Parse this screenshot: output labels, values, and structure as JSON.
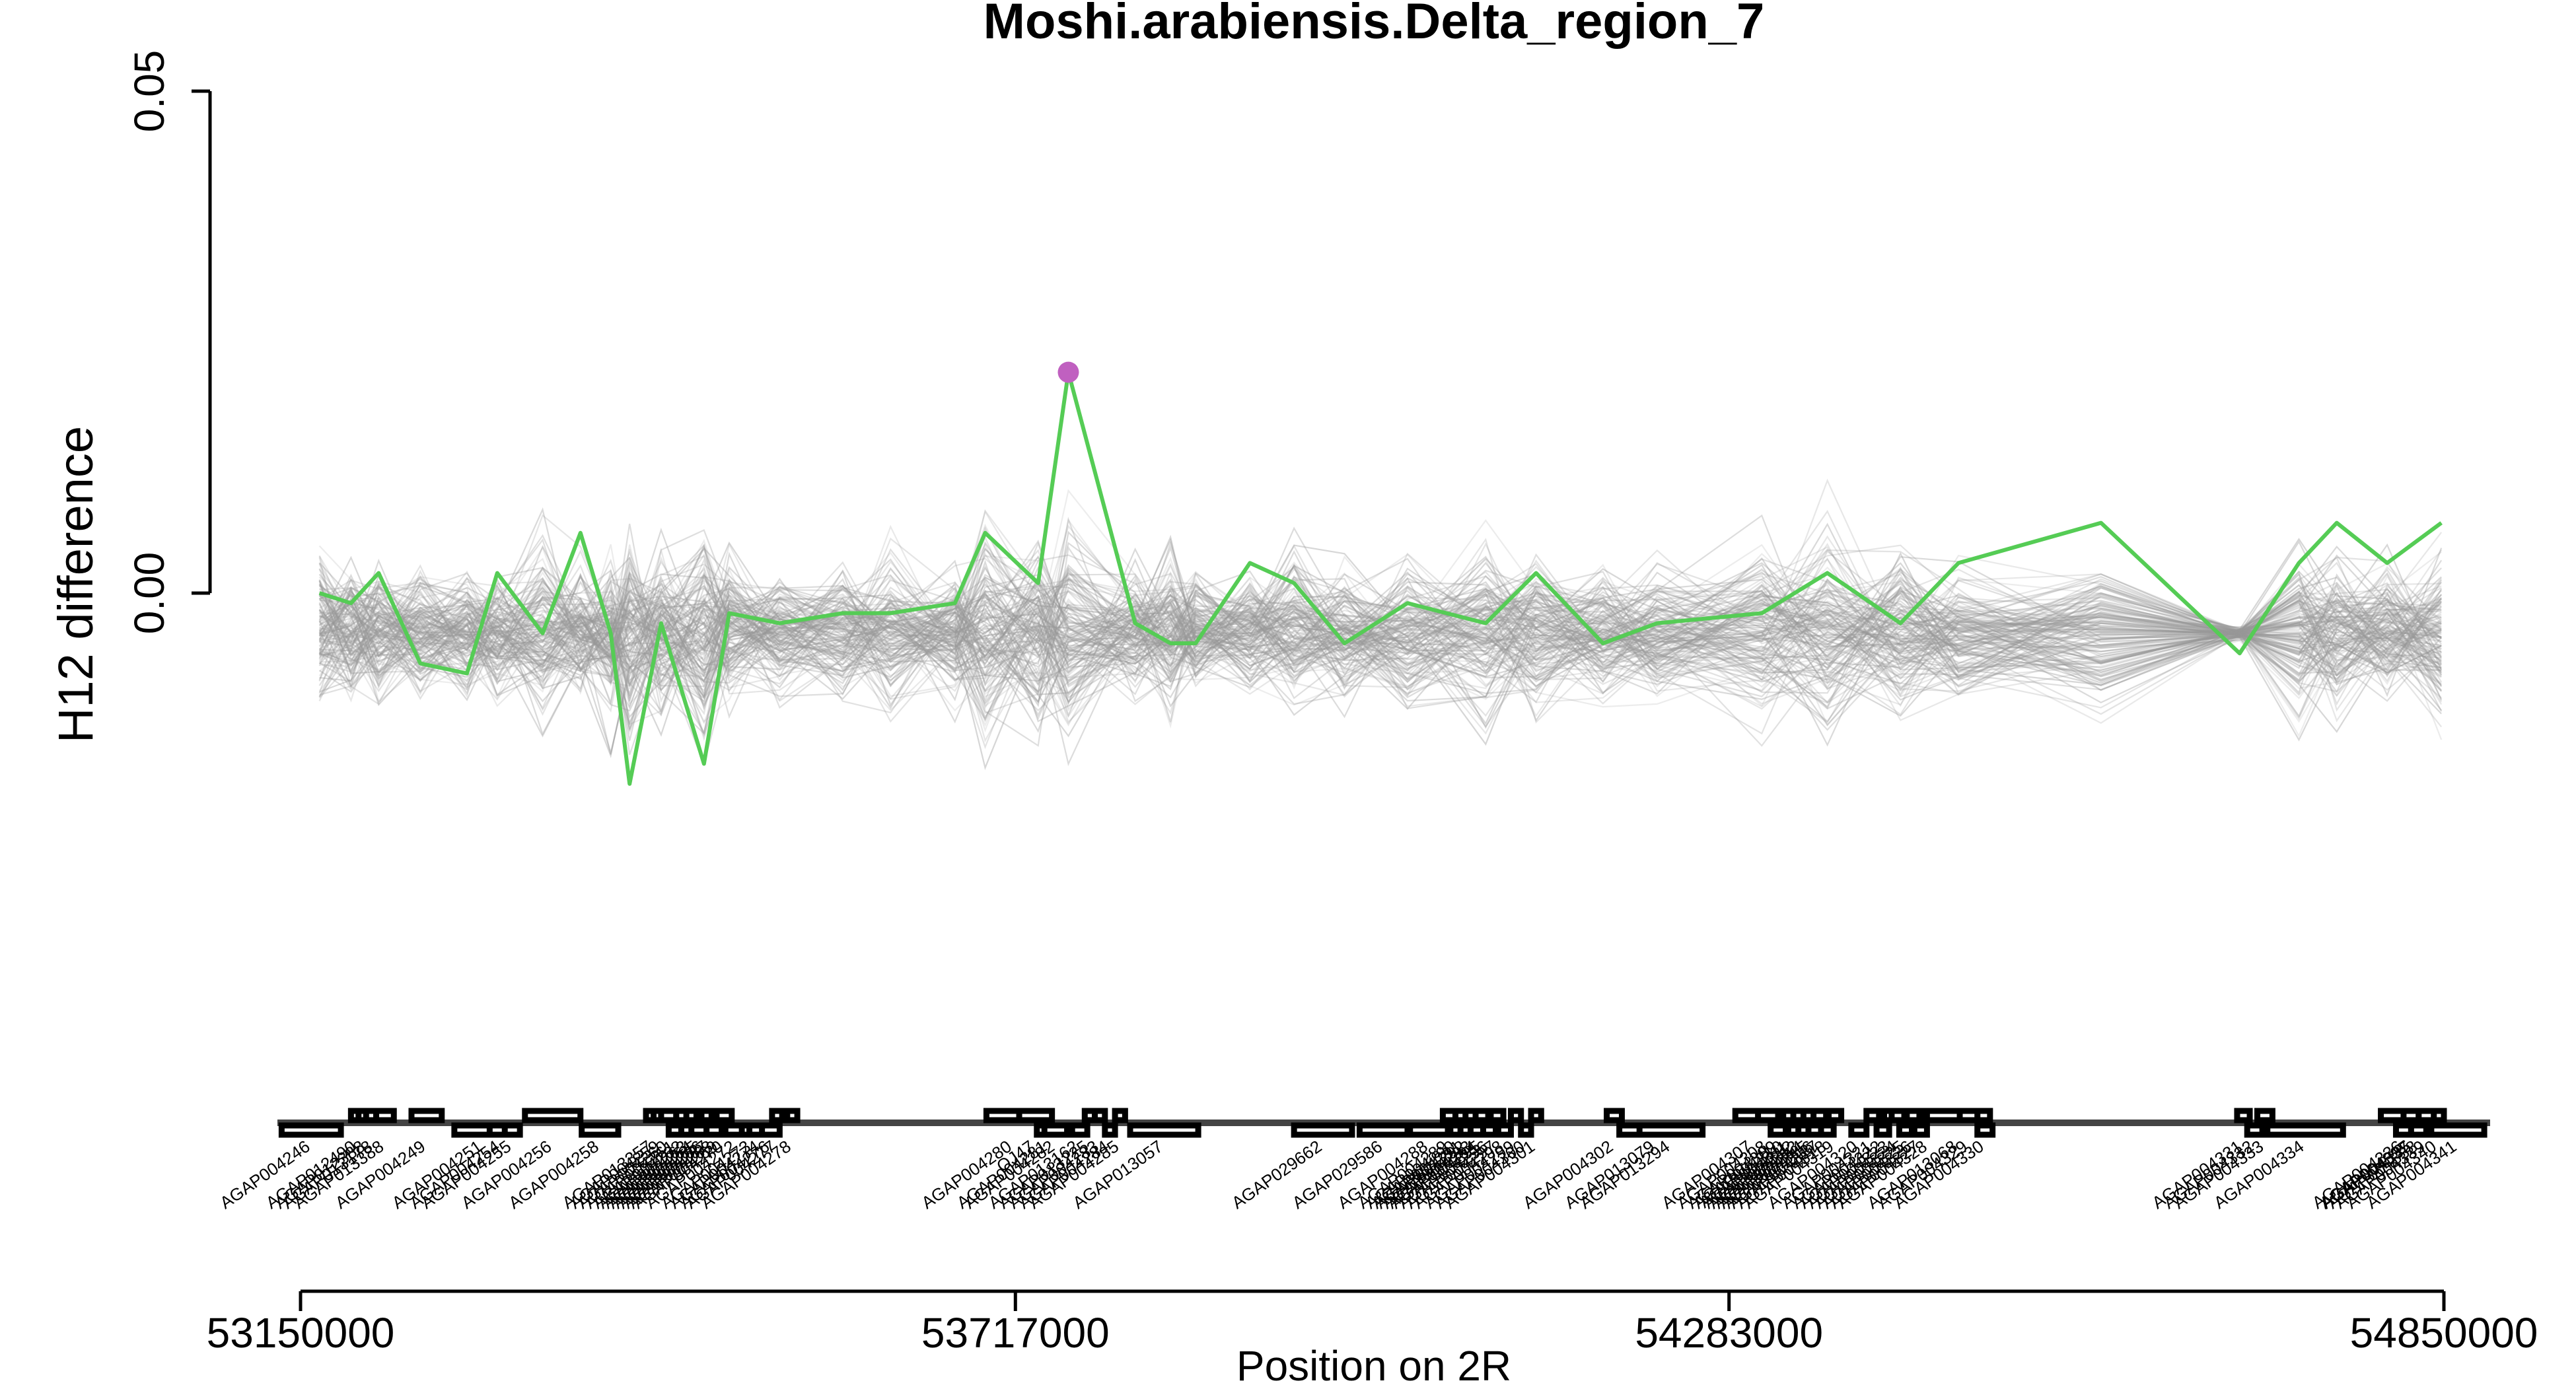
{
  "chart_data": {
    "type": "line",
    "title": "Moshi.arabiensis.Delta_region_7",
    "xlabel": "Position on 2R",
    "ylabel": "H12 difference",
    "xlim": [
      53150000,
      54850000
    ],
    "ylim": [
      -0.036,
      0.05
    ],
    "x_ticks": [
      53150000,
      53717000,
      54283000,
      54850000
    ],
    "x_tick_labels": [
      "53150000",
      "53717000",
      "54283000",
      "54850000"
    ],
    "y_ticks": [
      0.0,
      0.05
    ],
    "y_tick_labels": [
      "0.00",
      "0.05"
    ],
    "grid": false,
    "colors": {
      "main_line": "#55cc55",
      "peak_point": "#c060c0",
      "permutation_lines": "#999999",
      "genes": "#000000"
    },
    "series": [
      {
        "x": [
          53165000,
          53190000,
          53212000,
          53245000,
          53282000,
          53306000,
          53342000,
          53372000,
          53396000,
          53411000,
          53436000,
          53470000,
          53490000,
          53530000,
          53580000,
          53618000,
          53669000,
          53693000,
          53735000,
          53759000,
          53812000,
          53840000,
          53860000,
          53903000,
          53938000,
          53978000,
          54028000,
          54090000,
          54130000,
          54183000,
          54226000,
          54309000,
          54361000,
          54419000,
          54465000,
          54578000,
          54688000,
          54735000,
          54765000,
          54805000,
          54848000
        ],
        "y": [
          0.0,
          -0.001,
          0.002,
          -0.007,
          -0.008,
          0.002,
          -0.004,
          0.006,
          -0.004,
          -0.019,
          -0.003,
          -0.017,
          -0.002,
          -0.003,
          -0.002,
          -0.002,
          -0.001,
          0.006,
          0.001,
          0.022,
          -0.003,
          -0.005,
          -0.005,
          0.003,
          0.001,
          -0.005,
          -0.001,
          -0.003,
          0.002,
          -0.005,
          -0.003,
          -0.002,
          0.002,
          -0.003,
          0.003,
          0.007,
          -0.006,
          0.003,
          0.007,
          0.003,
          0.007
        ]
      }
    ],
    "highlight_point": {
      "x": 53759000,
      "y": 0.022
    },
    "genes": [
      {
        "name": "AGAP004246",
        "start": 53135000,
        "end": 53182000,
        "strand": "-"
      },
      {
        "name": "AGAP012490",
        "start": 53190000,
        "end": 53200000,
        "strand": "+"
      },
      {
        "name": "AGAP012388",
        "start": 53196000,
        "end": 53208000,
        "strand": "+"
      },
      {
        "name": "AGAP013178",
        "start": 53202000,
        "end": 53214000,
        "strand": "+"
      },
      {
        "name": "AGAP013388",
        "start": 53210000,
        "end": 53224000,
        "strand": "+"
      },
      {
        "name": "AGAP004249",
        "start": 53238000,
        "end": 53262000,
        "strand": "+"
      },
      {
        "name": "AGAP004251",
        "start": 53272000,
        "end": 53318000,
        "strand": "-"
      },
      {
        "name": "AGAP004254",
        "start": 53300000,
        "end": 53318000,
        "strand": "-"
      },
      {
        "name": "AGAP004255",
        "start": 53312000,
        "end": 53324000,
        "strand": "-"
      },
      {
        "name": "AGAP004256",
        "start": 53328000,
        "end": 53372000,
        "strand": "+"
      },
      {
        "name": "AGAP004258",
        "start": 53373000,
        "end": 53402000,
        "strand": "-"
      },
      {
        "name": "AGAP013357",
        "start": 53424000,
        "end": 53436000,
        "strand": "+"
      },
      {
        "name": "AGAP004259",
        "start": 53430000,
        "end": 53442000,
        "strand": "+"
      },
      {
        "name": "AGAP004260",
        "start": 53436000,
        "end": 53448000,
        "strand": "+"
      },
      {
        "name": "AGAP004261",
        "start": 53442000,
        "end": 53454000,
        "strand": "-"
      },
      {
        "name": "AGAP004262",
        "start": 53448000,
        "end": 53460000,
        "strand": "+"
      },
      {
        "name": "AGAP004263",
        "start": 53452000,
        "end": 53464000,
        "strand": "-"
      },
      {
        "name": "AGAP004264",
        "start": 53456000,
        "end": 53468000,
        "strand": "+"
      },
      {
        "name": "AGAP004265",
        "start": 53460000,
        "end": 53472000,
        "strand": "-"
      },
      {
        "name": "AGAP004266",
        "start": 53464000,
        "end": 53476000,
        "strand": "+"
      },
      {
        "name": "AGAP004267",
        "start": 53468000,
        "end": 53480000,
        "strand": "+"
      },
      {
        "name": "AGAP004268",
        "start": 53472000,
        "end": 53484000,
        "strand": "-"
      },
      {
        "name": "AGAP004269",
        "start": 53476000,
        "end": 53488000,
        "strand": "+"
      },
      {
        "name": "AGAP004270",
        "start": 53480000,
        "end": 53492000,
        "strand": "+"
      },
      {
        "name": "AGAP004272",
        "start": 53487000,
        "end": 53505000,
        "strand": "-"
      },
      {
        "name": "AGAP004273",
        "start": 53500000,
        "end": 53516000,
        "strand": "-"
      },
      {
        "name": "AGAP004274",
        "start": 53506000,
        "end": 53524000,
        "strand": "-"
      },
      {
        "name": "AGAP004276",
        "start": 53516000,
        "end": 53530000,
        "strand": "-"
      },
      {
        "name": "AGAP004277",
        "start": 53524000,
        "end": 53532000,
        "strand": "+"
      },
      {
        "name": "AGAP004278",
        "start": 53536000,
        "end": 53544000,
        "strand": "+"
      },
      {
        "name": "AGAP004280",
        "start": 53694000,
        "end": 53736000,
        "strand": "+"
      },
      {
        "name": "OJ47",
        "start": 53720000,
        "end": 53746000,
        "strand": "+"
      },
      {
        "name": "AGAP004281",
        "start": 53734000,
        "end": 53752000,
        "strand": "-"
      },
      {
        "name": "AGAP004282",
        "start": 53740000,
        "end": 53758000,
        "strand": "-"
      },
      {
        "name": "AGAP013162",
        "start": 53762000,
        "end": 53774000,
        "strand": "-"
      },
      {
        "name": "AGAP013225",
        "start": 53772000,
        "end": 53780000,
        "strand": "+"
      },
      {
        "name": "AGAP004283",
        "start": 53780000,
        "end": 53788000,
        "strand": "+"
      },
      {
        "name": "AGAP004284",
        "start": 53788000,
        "end": 53796000,
        "strand": "-"
      },
      {
        "name": "AGAP004285",
        "start": 53796000,
        "end": 53804000,
        "strand": "+"
      },
      {
        "name": "AGAP013057",
        "start": 53808000,
        "end": 53862000,
        "strand": "-"
      },
      {
        "name": "AGAP029662",
        "start": 53938000,
        "end": 53984000,
        "strand": "-"
      },
      {
        "name": "AGAP029586",
        "start": 53990000,
        "end": 54028000,
        "strand": "-"
      },
      {
        "name": "AGAP004288",
        "start": 54030000,
        "end": 54060000,
        "strand": "-"
      },
      {
        "name": "AGAP004289",
        "start": 54056000,
        "end": 54066000,
        "strand": "+"
      },
      {
        "name": "AGAP004290",
        "start": 54062000,
        "end": 54072000,
        "strand": "-"
      },
      {
        "name": "AGAP004291",
        "start": 54066000,
        "end": 54078000,
        "strand": "+"
      },
      {
        "name": "AGAP004292",
        "start": 54070000,
        "end": 54080000,
        "strand": "-"
      },
      {
        "name": "AGAP004293",
        "start": 54074000,
        "end": 54086000,
        "strand": "+"
      },
      {
        "name": "AGAP004294",
        "start": 54078000,
        "end": 54090000,
        "strand": "-"
      },
      {
        "name": "AGAP004295",
        "start": 54082000,
        "end": 54092000,
        "strand": "+"
      },
      {
        "name": "AGAP004296",
        "start": 54088000,
        "end": 54098000,
        "strand": "-"
      },
      {
        "name": "AGAP004297",
        "start": 54094000,
        "end": 54104000,
        "strand": "+"
      },
      {
        "name": "AGAP004298",
        "start": 54100000,
        "end": 54110000,
        "strand": "-"
      },
      {
        "name": "AGAP004299",
        "start": 54110000,
        "end": 54118000,
        "strand": "+"
      },
      {
        "name": "AGAP004300",
        "start": 54118000,
        "end": 54126000,
        "strand": "-"
      },
      {
        "name": "AGAP004301",
        "start": 54126000,
        "end": 54134000,
        "strand": "+"
      },
      {
        "name": "AGAP004302",
        "start": 54186000,
        "end": 54198000,
        "strand": "+"
      },
      {
        "name": "AGAP013079",
        "start": 54196000,
        "end": 54254000,
        "strand": "-"
      },
      {
        "name": "AGAP013294",
        "start": 54212000,
        "end": 54262000,
        "strand": "-"
      },
      {
        "name": "AGAP004307",
        "start": 54288000,
        "end": 54316000,
        "strand": "+"
      },
      {
        "name": "AGAP004308",
        "start": 54306000,
        "end": 54322000,
        "strand": "+"
      },
      {
        "name": "AGAP004309",
        "start": 54316000,
        "end": 54328000,
        "strand": "-"
      },
      {
        "name": "AGAP004310",
        "start": 54322000,
        "end": 54332000,
        "strand": "+"
      },
      {
        "name": "AGAP004311",
        "start": 54326000,
        "end": 54336000,
        "strand": "+"
      },
      {
        "name": "AGAP004312",
        "start": 54330000,
        "end": 54340000,
        "strand": "-"
      },
      {
        "name": "AGAP004313",
        "start": 54334000,
        "end": 54344000,
        "strand": "+"
      },
      {
        "name": "AGAP004314",
        "start": 54338000,
        "end": 54348000,
        "strand": "-"
      },
      {
        "name": "AGAP004315",
        "start": 54342000,
        "end": 54352000,
        "strand": "+"
      },
      {
        "name": "AGAP004316",
        "start": 54346000,
        "end": 54356000,
        "strand": "-"
      },
      {
        "name": "AGAP004317",
        "start": 54350000,
        "end": 54360000,
        "strand": "+"
      },
      {
        "name": "AGAP004318",
        "start": 54356000,
        "end": 54366000,
        "strand": "-"
      },
      {
        "name": "AGAP004319",
        "start": 54362000,
        "end": 54372000,
        "strand": "+"
      },
      {
        "name": "AGAP004320",
        "start": 54380000,
        "end": 54392000,
        "strand": "-"
      },
      {
        "name": "AGAP004321",
        "start": 54392000,
        "end": 54402000,
        "strand": "+"
      },
      {
        "name": "AGAP004322",
        "start": 54400000,
        "end": 54410000,
        "strand": "-"
      },
      {
        "name": "AGAP004323",
        "start": 54406000,
        "end": 54416000,
        "strand": "+"
      },
      {
        "name": "AGAP004324",
        "start": 54412000,
        "end": 54422000,
        "strand": "+"
      },
      {
        "name": "AGAP004325",
        "start": 54418000,
        "end": 54428000,
        "strand": "-"
      },
      {
        "name": "AGAP004326",
        "start": 54424000,
        "end": 54434000,
        "strand": "+"
      },
      {
        "name": "AGAP004327",
        "start": 54430000,
        "end": 54440000,
        "strand": "-"
      },
      {
        "name": "AGAP004328",
        "start": 54436000,
        "end": 54446000,
        "strand": "+"
      },
      {
        "name": "AGAP013068",
        "start": 54440000,
        "end": 54490000,
        "strand": "+"
      },
      {
        "name": "AGAP004329",
        "start": 54466000,
        "end": 54480000,
        "strand": "+"
      },
      {
        "name": "AGAP004330",
        "start": 54480000,
        "end": 54492000,
        "strand": "-"
      },
      {
        "name": "AGAP004331",
        "start": 54686000,
        "end": 54696000,
        "strand": "+"
      },
      {
        "name": "AGAP004332",
        "start": 54694000,
        "end": 54706000,
        "strand": "-"
      },
      {
        "name": "AGAP004333",
        "start": 54702000,
        "end": 54714000,
        "strand": "+"
      },
      {
        "name": "AGAP004334",
        "start": 54710000,
        "end": 54770000,
        "strand": "-"
      },
      {
        "name": "AGAP004335",
        "start": 54800000,
        "end": 54850000,
        "strand": "+"
      },
      {
        "name": "AGAP004336",
        "start": 54812000,
        "end": 54824000,
        "strand": "-"
      },
      {
        "name": "AGAP004337",
        "start": 54818000,
        "end": 54830000,
        "strand": "+"
      },
      {
        "name": "AGAP004338",
        "start": 54824000,
        "end": 54836000,
        "strand": "-"
      },
      {
        "name": "AGAP004339",
        "start": 54830000,
        "end": 54842000,
        "strand": "+"
      },
      {
        "name": "AGAP004340",
        "start": 54838000,
        "end": 54852000,
        "strand": "-"
      },
      {
        "name": "AGAP004341",
        "start": 54840000,
        "end": 54882000,
        "strand": "-"
      }
    ]
  }
}
